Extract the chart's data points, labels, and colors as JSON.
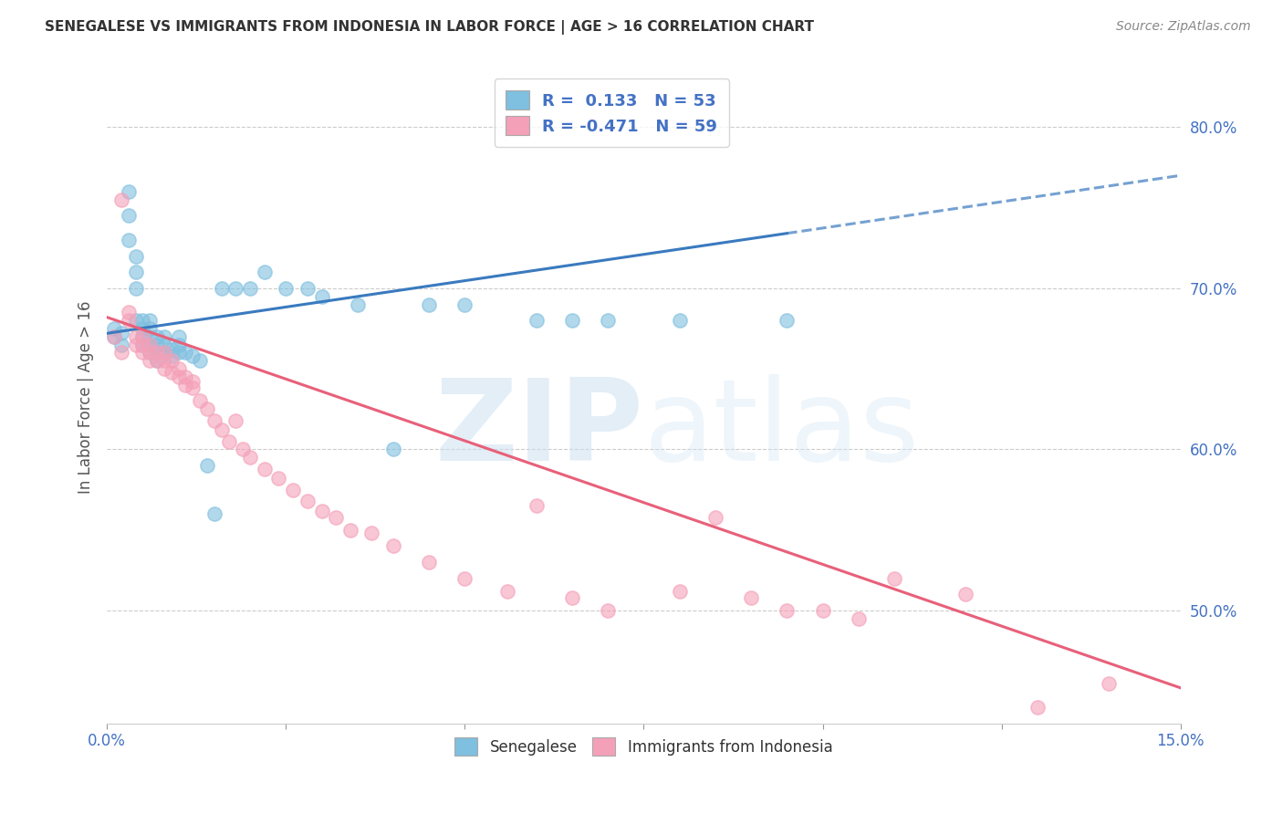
{
  "title": "SENEGALESE VS IMMIGRANTS FROM INDONESIA IN LABOR FORCE | AGE > 16 CORRELATION CHART",
  "source": "Source: ZipAtlas.com",
  "ylabel": "In Labor Force | Age > 16",
  "x_range": [
    0.0,
    0.15
  ],
  "y_range": [
    0.43,
    0.835
  ],
  "legend_blue_label": "Senegalese",
  "legend_pink_label": "Immigrants from Indonesia",
  "R_blue": 0.133,
  "N_blue": 53,
  "R_pink": -0.471,
  "N_pink": 59,
  "blue_color": "#7fbfdf",
  "pink_color": "#f4a0b8",
  "blue_line_color": "#3a7abf",
  "pink_line_color": "#e8607a",
  "watermark_zip": "ZIP",
  "watermark_atlas": "atlas",
  "blue_scatter_x": [
    0.001,
    0.001,
    0.002,
    0.002,
    0.003,
    0.003,
    0.003,
    0.004,
    0.004,
    0.004,
    0.004,
    0.005,
    0.005,
    0.005,
    0.005,
    0.006,
    0.006,
    0.006,
    0.006,
    0.006,
    0.007,
    0.007,
    0.007,
    0.007,
    0.008,
    0.008,
    0.008,
    0.009,
    0.009,
    0.01,
    0.01,
    0.01,
    0.011,
    0.012,
    0.013,
    0.014,
    0.015,
    0.016,
    0.018,
    0.02,
    0.022,
    0.025,
    0.028,
    0.03,
    0.035,
    0.04,
    0.045,
    0.05,
    0.06,
    0.065,
    0.07,
    0.08,
    0.095
  ],
  "blue_scatter_y": [
    0.67,
    0.675,
    0.665,
    0.672,
    0.73,
    0.745,
    0.76,
    0.7,
    0.71,
    0.72,
    0.68,
    0.665,
    0.67,
    0.675,
    0.68,
    0.66,
    0.665,
    0.67,
    0.675,
    0.68,
    0.655,
    0.66,
    0.665,
    0.67,
    0.66,
    0.665,
    0.67,
    0.658,
    0.662,
    0.66,
    0.665,
    0.67,
    0.66,
    0.658,
    0.655,
    0.59,
    0.56,
    0.7,
    0.7,
    0.7,
    0.71,
    0.7,
    0.7,
    0.695,
    0.69,
    0.6,
    0.69,
    0.69,
    0.68,
    0.68,
    0.68,
    0.68,
    0.68
  ],
  "pink_scatter_x": [
    0.001,
    0.002,
    0.002,
    0.003,
    0.003,
    0.004,
    0.004,
    0.005,
    0.005,
    0.005,
    0.006,
    0.006,
    0.006,
    0.007,
    0.007,
    0.008,
    0.008,
    0.008,
    0.009,
    0.009,
    0.01,
    0.01,
    0.011,
    0.011,
    0.012,
    0.012,
    0.013,
    0.014,
    0.015,
    0.016,
    0.017,
    0.018,
    0.019,
    0.02,
    0.022,
    0.024,
    0.026,
    0.028,
    0.03,
    0.032,
    0.034,
    0.037,
    0.04,
    0.045,
    0.05,
    0.056,
    0.06,
    0.065,
    0.07,
    0.08,
    0.085,
    0.09,
    0.095,
    0.1,
    0.105,
    0.11,
    0.12,
    0.13,
    0.14
  ],
  "pink_scatter_y": [
    0.67,
    0.755,
    0.66,
    0.68,
    0.685,
    0.665,
    0.67,
    0.66,
    0.665,
    0.67,
    0.655,
    0.66,
    0.665,
    0.655,
    0.66,
    0.65,
    0.655,
    0.66,
    0.648,
    0.655,
    0.645,
    0.65,
    0.64,
    0.645,
    0.638,
    0.642,
    0.63,
    0.625,
    0.618,
    0.612,
    0.605,
    0.618,
    0.6,
    0.595,
    0.588,
    0.582,
    0.575,
    0.568,
    0.562,
    0.558,
    0.55,
    0.548,
    0.54,
    0.53,
    0.52,
    0.512,
    0.565,
    0.508,
    0.5,
    0.512,
    0.558,
    0.508,
    0.5,
    0.5,
    0.495,
    0.52,
    0.51,
    0.44,
    0.455
  ],
  "grid_color": "#cccccc",
  "background_color": "#ffffff",
  "blue_line_y0": 0.672,
  "blue_line_y1": 0.77,
  "pink_line_y0": 0.682,
  "pink_line_y1": 0.452
}
